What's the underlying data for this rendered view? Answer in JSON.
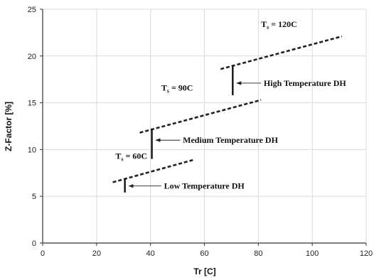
{
  "chart_data": {
    "type": "line",
    "xlabel": "Tr [C]",
    "ylabel": "Z-Factor [%]",
    "xlim": [
      0,
      120
    ],
    "ylim": [
      0,
      25
    ],
    "x_ticks": [
      0,
      20,
      40,
      60,
      80,
      100,
      120
    ],
    "y_ticks": [
      0,
      5,
      10,
      15,
      20,
      25
    ],
    "grid": true,
    "line_style": "dashed",
    "series": [
      {
        "name": "Ts = 60C",
        "x": [
          26,
          56
        ],
        "y": [
          6.5,
          8.9
        ]
      },
      {
        "name": "Ts = 90C",
        "x": [
          36,
          81
        ],
        "y": [
          11.8,
          15.3
        ]
      },
      {
        "name": "Ts = 120C",
        "x": [
          66,
          111
        ],
        "y": [
          18.6,
          22.1
        ]
      }
    ],
    "series_labels": [
      {
        "text": "Ts = 60C",
        "x": 27,
        "y": 9.0
      },
      {
        "text": "Ts = 90C",
        "x": 44,
        "y": 16.3
      },
      {
        "text": "Ts = 120C",
        "x": 81,
        "y": 23.1
      }
    ],
    "bars": [
      {
        "x": 30.5,
        "y_low": 5.4,
        "y_high": 6.9
      },
      {
        "x": 40.5,
        "y_low": 9.0,
        "y_high": 12.2
      },
      {
        "x": 70.5,
        "y_low": 15.8,
        "y_high": 18.9
      }
    ],
    "annotations": [
      {
        "text": "Low Temperature DH",
        "arrow_to": [
          32,
          6.1
        ],
        "arrow_from": [
          44,
          6.1
        ],
        "label_at": [
          45,
          6.1
        ]
      },
      {
        "text": "Medium Temperature DH",
        "arrow_to": [
          42,
          11.0
        ],
        "arrow_from": [
          51,
          11.0
        ],
        "label_at": [
          52,
          11.0
        ]
      },
      {
        "text": "High Temperature DH",
        "arrow_to": [
          72,
          17.1
        ],
        "arrow_from": [
          81,
          17.1
        ],
        "label_at": [
          82,
          17.1
        ]
      }
    ]
  }
}
